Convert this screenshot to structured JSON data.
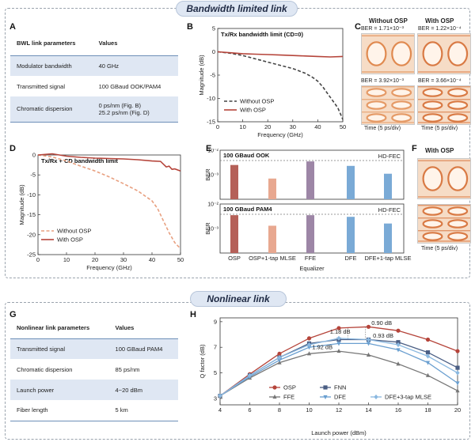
{
  "sections": {
    "bandwidth_title": "Bandwidth limited link",
    "nonlinear_title": "Nonlinear link"
  },
  "panels": {
    "A": "A",
    "B": "B",
    "C": "C",
    "D": "D",
    "E": "E",
    "F": "F",
    "G": "G",
    "H": "H"
  },
  "table_A": {
    "headers": [
      "BWL link parameters",
      "Values"
    ],
    "rows": [
      [
        "Modulator bandwidth",
        "40 GHz"
      ],
      [
        "Transmitted signal",
        "100 GBaud OOK/PAM4"
      ],
      [
        "Chromatic dispersion",
        "0 ps/nm (Fig. B)",
        "25.2 ps/nm (Fig. D)"
      ]
    ]
  },
  "table_G": {
    "headers": [
      "Nonlinear link parameters",
      "Values"
    ],
    "rows": [
      [
        "Transmitted signal",
        "100 GBaud PAM4"
      ],
      [
        "Chromatic dispersion",
        "85 ps/nm"
      ],
      [
        "Launch power",
        "4~20 dBm"
      ],
      [
        "Fiber length",
        "5 km"
      ]
    ]
  },
  "panel_C": {
    "col_without": "Without OSP",
    "col_with": "With OSP",
    "ber_tl": "BER = 1.71×10⁻³",
    "ber_tr": "BER = 1.22×10⁻⁴",
    "ber_bl": "BER = 3.92×10⁻³",
    "ber_br": "BER = 3.66×10⁻⁴",
    "time_left": "Time (5 ps/div)",
    "time_right": "Time (5 ps/div)"
  },
  "panel_F": {
    "title": "With OSP",
    "time": "Time (5 ps/div)"
  },
  "colors": {
    "osp": "#b5443a",
    "without_b": "#444444",
    "without_d": "#e8a080",
    "fnn": "#4a5e84",
    "ffe": "#777777",
    "dfe": "#6a9fd0",
    "dfe_mlse": "#8ab8e0",
    "bar_osp": "#b56058",
    "bar_mlse": "#e8a890",
    "bar_ffe": "#9d86a6",
    "bar_dfe": "#7aaad6",
    "bar_dfe_mlse": "#7aaad6"
  },
  "chart_data": [
    {
      "id": "B",
      "type": "line",
      "title": "Tx/Rx bandwidth limit (CD=0)",
      "xlabel": "Frequency (GHz)",
      "ylabel": "Magnitude (dB)",
      "xlim": [
        0,
        50
      ],
      "ylim": [
        -15,
        5
      ],
      "xticks": [
        "0",
        "10",
        "20",
        "30",
        "40",
        "50"
      ],
      "yticks": [
        "5",
        "0",
        "-5",
        "-10",
        "-15"
      ],
      "legend": [
        "Without OSP",
        "With OSP"
      ],
      "legend_position": "bottom-left",
      "series": [
        {
          "name": "Without OSP",
          "style": "dashed",
          "x": [
            0,
            5,
            10,
            15,
            20,
            25,
            30,
            35,
            38,
            40,
            42,
            44,
            46,
            48,
            50
          ],
          "y": [
            0,
            -0.3,
            -0.8,
            -1.5,
            -2.2,
            -2.9,
            -3.6,
            -4.6,
            -5.5,
            -6.3,
            -7.5,
            -9.0,
            -10.5,
            -12.0,
            -14.5
          ]
        },
        {
          "name": "With OSP",
          "style": "solid",
          "x": [
            0,
            5,
            10,
            15,
            20,
            25,
            30,
            35,
            40,
            45,
            50
          ],
          "y": [
            0,
            -0.2,
            -0.4,
            -0.5,
            -0.6,
            -0.7,
            -0.8,
            -0.9,
            -1.0,
            -1.1,
            -1.0
          ]
        }
      ]
    },
    {
      "id": "D",
      "type": "line",
      "title": "Tx/Rx + CD bandwidth limit",
      "xlabel": "Frequency (GHz)",
      "ylabel": "Magnitude (dB)",
      "xlim": [
        0,
        50
      ],
      "ylim": [
        -25,
        0
      ],
      "xticks": [
        "0",
        "10",
        "20",
        "30",
        "40",
        "50"
      ],
      "yticks": [
        "0",
        "-5",
        "-10",
        "-15",
        "-20",
        "-25"
      ],
      "legend": [
        "Without OSP",
        "With OSP"
      ],
      "legend_position": "bottom-left",
      "series": [
        {
          "name": "Without OSP",
          "style": "dashed",
          "x": [
            0,
            5,
            10,
            15,
            20,
            25,
            30,
            35,
            40,
            42,
            44,
            46,
            48,
            50
          ],
          "y": [
            0,
            -0.5,
            -1.5,
            -2.8,
            -4.0,
            -5.5,
            -7.2,
            -9.0,
            -11.5,
            -13.5,
            -16.5,
            -19.5,
            -22.0,
            -23.5
          ]
        },
        {
          "name": "With OSP",
          "style": "solid",
          "x": [
            0,
            5,
            10,
            15,
            20,
            25,
            30,
            35,
            40,
            43,
            45,
            46,
            47,
            48,
            50
          ],
          "y": [
            0,
            0.3,
            -0.3,
            -0.6,
            -0.8,
            -0.9,
            -1.0,
            -1.2,
            -1.5,
            -1.6,
            -3.0,
            -2.8,
            -3.6,
            -3.5,
            -4.0
          ]
        }
      ]
    },
    {
      "id": "E-top",
      "type": "bar",
      "title": "100 GBaud OOK",
      "ylabel": "BER",
      "yscale": "log",
      "ylim": [
        0.0001,
        0.01
      ],
      "yticks": [
        "10⁻²",
        "10⁻³"
      ],
      "threshold_label": "HD-FEC",
      "threshold": 0.0038,
      "categories": [
        "OSP",
        "OSP+1-tap MLSE",
        "FFE",
        "DFE",
        "DFE+1-tap MLSE"
      ],
      "values": [
        0.0025,
        0.0007,
        0.0035,
        0.0023,
        0.0011
      ]
    },
    {
      "id": "E-bottom",
      "type": "bar",
      "title": "100 GBaud PAM4",
      "ylabel": "BER",
      "xlabel": "Equalizer",
      "yscale": "log",
      "ylim": [
        0.0001,
        0.01
      ],
      "yticks": [
        "10⁻²",
        "10⁻³"
      ],
      "threshold_label": "HD-FEC",
      "threshold": 0.0038,
      "categories": [
        "OSP",
        "OSP+1-tap MLSE",
        "FFE",
        "DFE",
        "DFE+1-tap MLSE"
      ],
      "values": [
        0.0035,
        0.0013,
        0.0035,
        0.003,
        0.0016
      ]
    },
    {
      "id": "H",
      "type": "line",
      "xlabel": "Launch power (dBm)",
      "ylabel": "Q factor (dB)",
      "xlim": [
        4,
        20
      ],
      "ylim": [
        2.5,
        9.3
      ],
      "xticks": [
        "4",
        "6",
        "8",
        "10",
        "12",
        "14",
        "16",
        "18",
        "20"
      ],
      "yticks": [
        "3",
        "5",
        "7",
        "9"
      ],
      "legend_position": "bottom",
      "annotations": [
        "1.18 dB",
        "0.90 dB",
        "0.93 dB",
        "1.92 dB"
      ],
      "x": [
        4,
        6,
        8,
        10,
        12,
        14,
        16,
        18,
        20
      ],
      "series": [
        {
          "name": "OSP",
          "marker": "circle",
          "y": [
            3.2,
            4.9,
            6.5,
            7.7,
            8.5,
            8.6,
            8.3,
            7.6,
            6.7
          ]
        },
        {
          "name": "FNN",
          "marker": "square",
          "y": [
            3.2,
            4.8,
            6.2,
            7.3,
            7.6,
            7.6,
            7.4,
            6.6,
            5.4
          ]
        },
        {
          "name": "FFE",
          "marker": "triangle-up",
          "y": [
            3.2,
            4.6,
            5.8,
            6.5,
            6.7,
            6.4,
            5.7,
            4.8,
            3.6
          ]
        },
        {
          "name": "DFE",
          "marker": "triangle-down",
          "y": [
            3.2,
            4.7,
            6.0,
            7.0,
            7.3,
            7.3,
            6.8,
            5.8,
            4.2
          ]
        },
        {
          "name": "DFE+3-tap MLSE",
          "marker": "diamond",
          "y": [
            3.2,
            4.8,
            6.2,
            7.2,
            7.7,
            7.6,
            7.2,
            6.3,
            5.0
          ]
        }
      ]
    }
  ]
}
